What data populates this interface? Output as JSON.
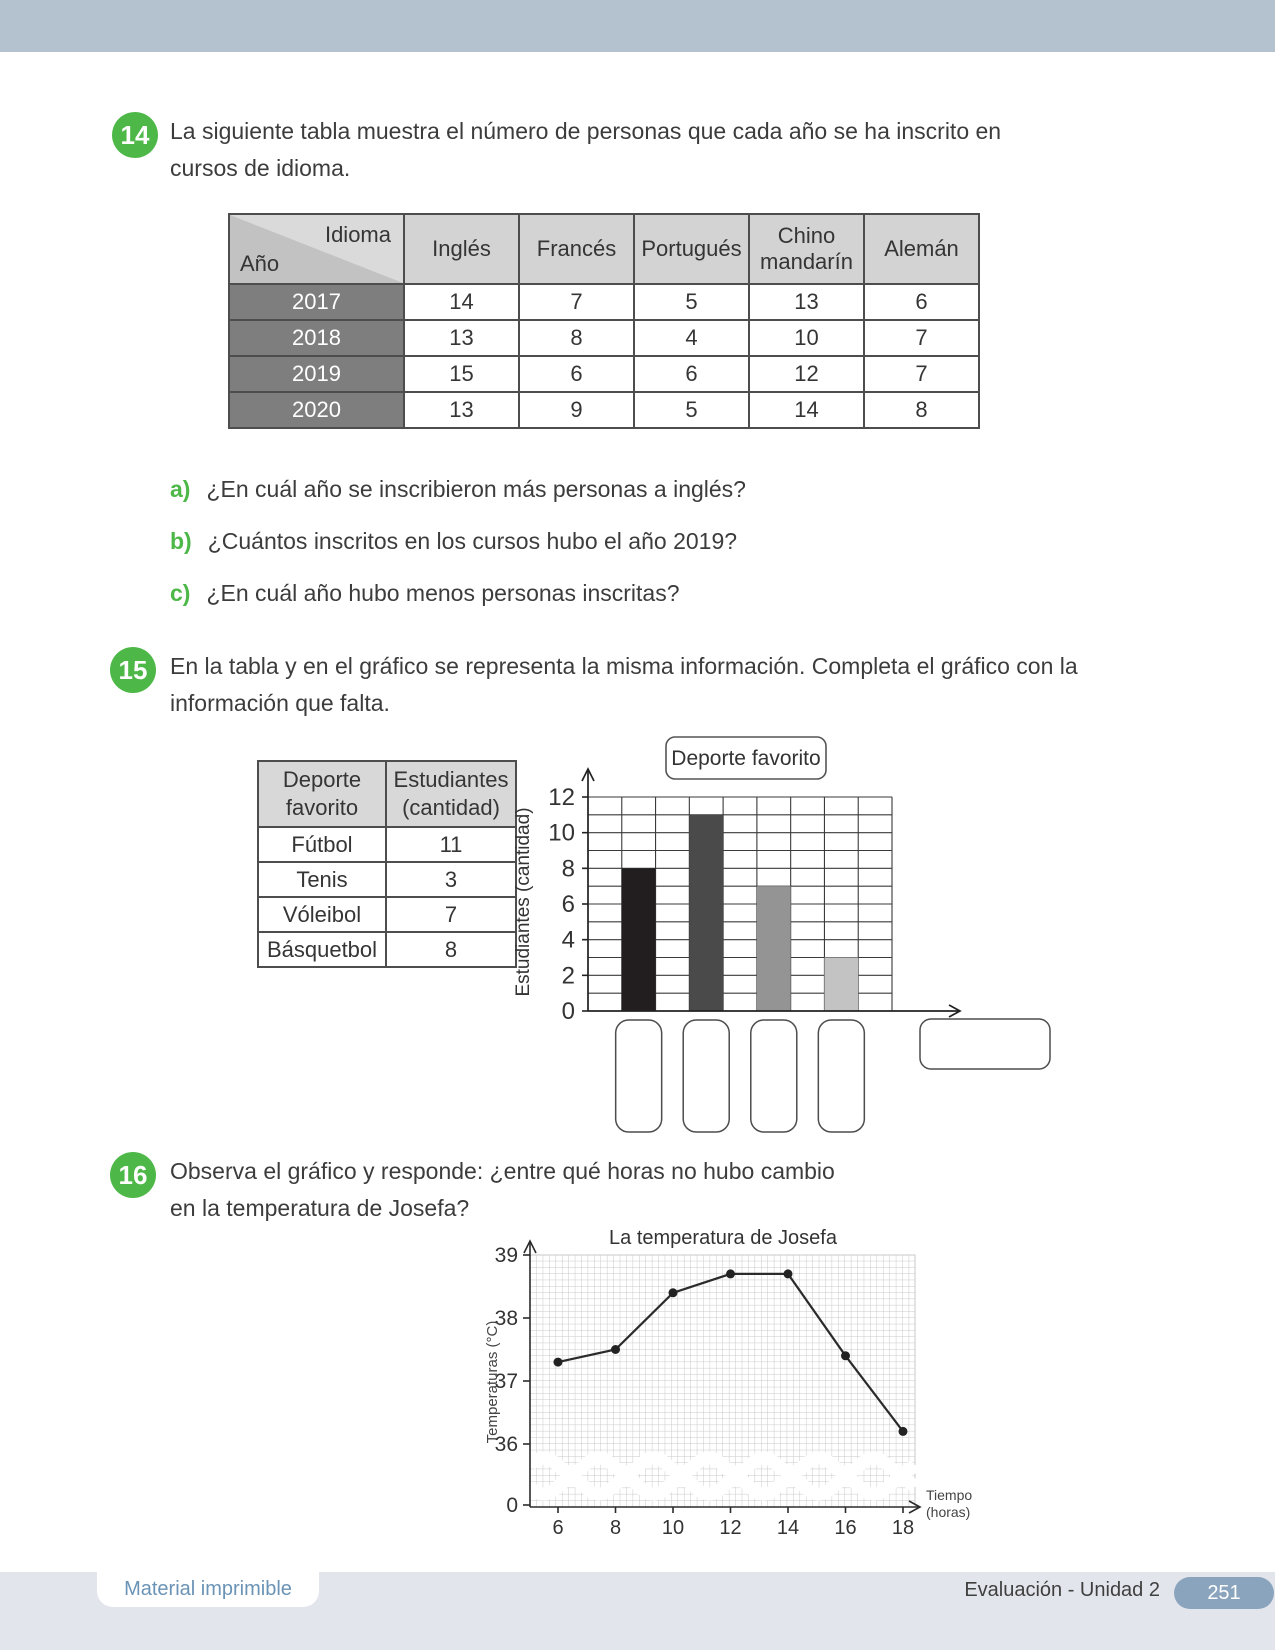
{
  "colors": {
    "top_bar": "#b4c1cf",
    "accent_green": "#4db848",
    "table_header_gray": "#d3d3d3",
    "table_year_gray": "#7e7e7e",
    "footer_band": "#e3e5ec",
    "footer_blue_text": "#6a93b6",
    "page_badge": "#8ba4bd"
  },
  "exercise14": {
    "number": "14",
    "prompt_lines": [
      "La siguiente tabla muestra el número de personas que cada año se ha inscrito en",
      "cursos de idioma."
    ],
    "table": {
      "corner_top": "Idioma",
      "corner_bottom": "Año",
      "columns": [
        "Inglés",
        "Francés",
        "Portugués",
        "Chino mandarín",
        "Alemán"
      ],
      "rows": [
        {
          "year": "2017",
          "values": [
            "14",
            "7",
            "5",
            "13",
            "6"
          ]
        },
        {
          "year": "2018",
          "values": [
            "13",
            "8",
            "4",
            "10",
            "7"
          ]
        },
        {
          "year": "2019",
          "values": [
            "15",
            "6",
            "6",
            "12",
            "7"
          ]
        },
        {
          "year": "2020",
          "values": [
            "13",
            "9",
            "5",
            "14",
            "8"
          ]
        }
      ]
    },
    "questions": [
      {
        "label": "a)",
        "text": "¿En cuál año se inscribieron más personas a inglés?"
      },
      {
        "label": "b)",
        "text": "¿Cuántos inscritos en los cursos hubo el año 2019?"
      },
      {
        "label": "c)",
        "text": "¿En cuál año hubo menos personas inscritas?"
      }
    ]
  },
  "exercise15": {
    "number": "15",
    "prompt_lines": [
      "En la tabla y en el gráfico se representa la misma información. Completa el gráfico con la",
      "información que falta."
    ],
    "table": {
      "headers": [
        "Deporte favorito",
        "Estudiantes (cantidad)"
      ],
      "rows": [
        [
          "Fútbol",
          "11"
        ],
        [
          "Tenis",
          "3"
        ],
        [
          "Vóleibol",
          "7"
        ],
        [
          "Básquetbol",
          "8"
        ]
      ]
    }
  },
  "exercise16": {
    "number": "16",
    "prompt_lines": [
      "Observa el gráfico y responde: ¿entre qué horas no hubo cambio",
      "en la temperatura de Josefa?"
    ]
  },
  "chart_data": [
    {
      "type": "bar",
      "title": "Deporte favorito",
      "ylabel": "Estudiantes (cantidad)",
      "xlabel": "",
      "ylim": [
        0,
        12
      ],
      "yticks": [
        0,
        2,
        4,
        6,
        8,
        10,
        12
      ],
      "categories": [
        "",
        "",
        "",
        ""
      ],
      "values": [
        8,
        11,
        7,
        3
      ],
      "bar_colors": [
        "#221e1f",
        "#4a4a4a",
        "#949494",
        "#c3c3c3"
      ],
      "grid": true,
      "blank_category_boxes": 4,
      "blank_xlabel_box": true
    },
    {
      "type": "line",
      "title": "La temperatura de Josefa",
      "xlabel_lines": [
        "Tiempo",
        "(horas)"
      ],
      "ylabel": "Temperaturas (°C)",
      "x": [
        6,
        8,
        10,
        12,
        14,
        16,
        18
      ],
      "y": [
        37.3,
        37.5,
        38.4,
        38.7,
        38.7,
        37.4,
        36.2
      ],
      "xticks": [
        6,
        8,
        10,
        12,
        14,
        16,
        18
      ],
      "yticks": [
        0,
        36,
        37,
        38,
        39
      ],
      "origin_label": "0",
      "axis_break": true,
      "grid": "fine"
    }
  ],
  "footer": {
    "left_label": "Material imprimible",
    "right_label": "Evaluación - Unidad 2",
    "page_number": "251"
  }
}
